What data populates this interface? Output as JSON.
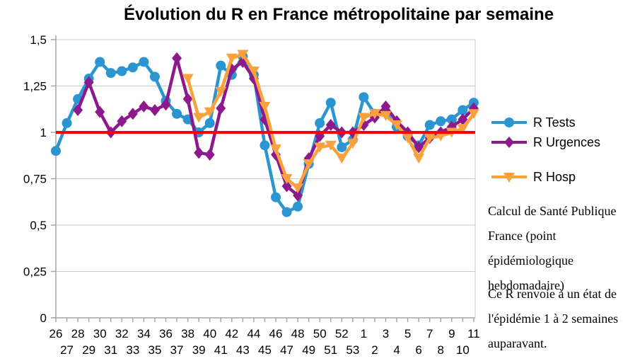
{
  "chart_data": {
    "type": "line",
    "title": "Évolution du R en France métropolitaine par semaine",
    "xlabel": "",
    "ylabel": "",
    "ylim": [
      0,
      1.5
    ],
    "ytick_step": 0.25,
    "grid": true,
    "legend_position": "right",
    "x_axis_note": "week numbers, even weeks on first row, odd weeks on second row",
    "categories": [
      "26",
      "27",
      "28",
      "29",
      "30",
      "31",
      "32",
      "33",
      "34",
      "35",
      "36",
      "37",
      "38",
      "39",
      "40",
      "41",
      "42",
      "43",
      "44",
      "45",
      "46",
      "47",
      "48",
      "49",
      "50",
      "51",
      "52",
      "53",
      "1",
      "2",
      "3",
      "4",
      "5",
      "6",
      "7",
      "8",
      "9",
      "10",
      "11"
    ],
    "series": [
      {
        "name": "R Tests",
        "color": "#2B95D2",
        "marker": "circle",
        "values": [
          0.9,
          1.05,
          1.18,
          1.29,
          1.38,
          1.32,
          1.33,
          1.35,
          1.38,
          1.3,
          1.17,
          1.1,
          1.07,
          1.0,
          1.05,
          1.36,
          1.31,
          1.41,
          1.31,
          0.93,
          0.65,
          0.57,
          0.6,
          0.83,
          1.05,
          1.16,
          0.92,
          0.96,
          1.19,
          1.1,
          1.11,
          1.03,
          0.98,
          0.93,
          1.04,
          1.06,
          1.07,
          1.12,
          1.16
        ]
      },
      {
        "name": "R Urgences",
        "color": "#8C1A8C",
        "marker": "diamond",
        "values": [
          null,
          null,
          1.12,
          1.27,
          1.11,
          1.0,
          1.06,
          1.1,
          1.14,
          1.12,
          1.15,
          1.4,
          1.18,
          0.89,
          0.88,
          1.13,
          1.34,
          1.38,
          1.29,
          1.07,
          0.88,
          0.71,
          0.66,
          0.86,
          0.98,
          1.04,
          1.0,
          1.0,
          1.04,
          1.08,
          1.14,
          1.06,
          1.0,
          0.92,
          0.97,
          1.0,
          1.03,
          1.07,
          1.13
        ]
      },
      {
        "name": "R Hosp",
        "color": "#F9A13D",
        "marker": "triangle-down",
        "values": [
          null,
          null,
          null,
          null,
          null,
          null,
          null,
          null,
          null,
          null,
          null,
          null,
          1.29,
          1.08,
          1.11,
          1.22,
          1.4,
          1.42,
          1.33,
          1.14,
          0.91,
          0.75,
          0.7,
          0.83,
          0.92,
          0.93,
          0.86,
          0.94,
          1.08,
          1.1,
          1.09,
          1.04,
          0.97,
          0.86,
          0.97,
          0.98,
          1.0,
          1.02,
          1.1
        ]
      }
    ],
    "reference_line": {
      "y": 1,
      "color": "#FF0000"
    }
  },
  "legend": {
    "items": [
      {
        "label": "R Tests",
        "color": "#2B95D2",
        "marker": "circle"
      },
      {
        "label": "R Urgences",
        "color": "#8C1A8C",
        "marker": "diamond"
      },
      {
        "label": "R Hosp",
        "color": "#F9A13D",
        "marker": "triangle-down"
      }
    ]
  },
  "annotations": {
    "source": "Calcul de Santé Publique\nFrance (point\népidémiologique\nhebdomadaire)",
    "note": "Ce R renvoie à un état de\nl'épidémie 1 à 2 semaines\nauparavant."
  },
  "colors": {
    "reference_line": "#FF0000",
    "gridline": "#C9C9C9",
    "axis": "#A6A6A6",
    "text": "#000000"
  }
}
